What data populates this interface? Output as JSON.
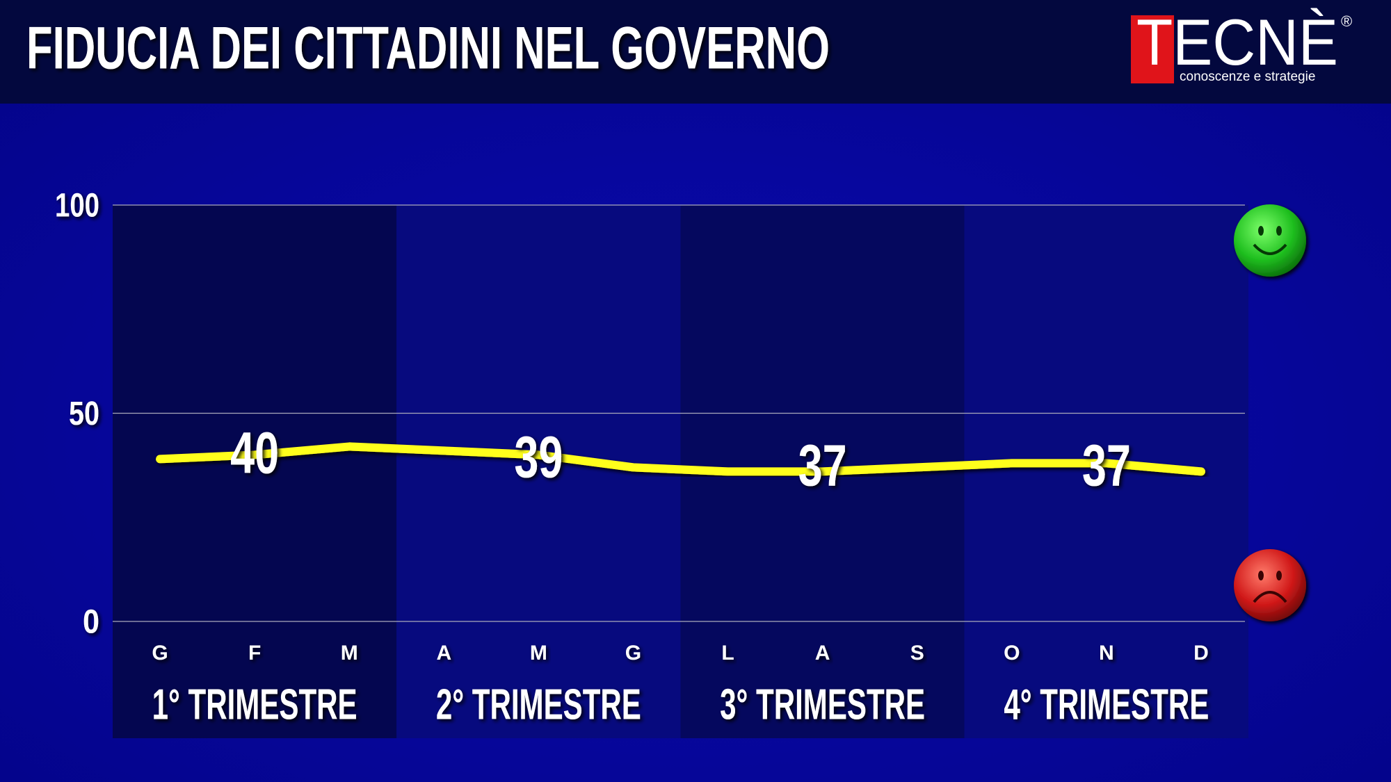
{
  "chart_data": {
    "type": "line",
    "title": "FIDUCIA DEI CITTADINI NEL GOVERNO",
    "logo": {
      "name": "TECNÈ",
      "mark": "®",
      "tagline": "conoscenze e strategie"
    },
    "categories": [
      "G",
      "F",
      "M",
      "A",
      "M",
      "G",
      "L",
      "A",
      "S",
      "O",
      "N",
      "D"
    ],
    "values": [
      39,
      40,
      42,
      41,
      40,
      37,
      36,
      36,
      37,
      38,
      38,
      36
    ],
    "color": "#ffff1e",
    "quarter_labels": [
      "1° TRIMESTRE",
      "2° TRIMESTRE",
      "3° TRIMESTRE",
      "4° TRIMESTRE"
    ],
    "quarter_values": [
      40,
      39,
      37,
      37
    ],
    "ylim": [
      0,
      100
    ],
    "yticks": [
      0,
      50,
      100
    ],
    "grid": true
  }
}
